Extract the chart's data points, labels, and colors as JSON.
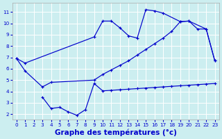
{
  "background_color": "#cceef0",
  "grid_color": "#ffffff",
  "line_color": "#0000cc",
  "xlabel": "Graphe des températures (°c)",
  "xlabel_fontsize": 7.5,
  "xlim": [
    -0.5,
    23.5
  ],
  "ylim": [
    1.5,
    11.8
  ],
  "xticks": [
    0,
    1,
    2,
    3,
    4,
    5,
    6,
    7,
    8,
    9,
    10,
    11,
    12,
    13,
    14,
    15,
    16,
    17,
    18,
    19,
    20,
    21,
    22,
    23
  ],
  "yticks": [
    2,
    3,
    4,
    5,
    6,
    7,
    8,
    9,
    10,
    11
  ],
  "series1_x": [
    0,
    1,
    9,
    10,
    11,
    12,
    13,
    14,
    15,
    16,
    17,
    19,
    20,
    22,
    23
  ],
  "series1_y": [
    6.9,
    6.5,
    8.8,
    10.2,
    10.2,
    9.6,
    8.9,
    8.7,
    11.2,
    11.1,
    10.9,
    10.15,
    10.2,
    9.5,
    6.7
  ],
  "series2_x": [
    0,
    1,
    3,
    4,
    9,
    10,
    11,
    12,
    13,
    14,
    15,
    16,
    17,
    18,
    19,
    20,
    21,
    22,
    23
  ],
  "series2_y": [
    6.9,
    5.8,
    4.4,
    4.8,
    5.0,
    5.5,
    5.9,
    6.3,
    6.7,
    7.2,
    7.7,
    8.2,
    8.7,
    9.3,
    10.15,
    10.2,
    9.5,
    9.5,
    6.7
  ],
  "series3_x": [
    3,
    4,
    5,
    6,
    7,
    8,
    9,
    10,
    11,
    12,
    13,
    14,
    15,
    16,
    17,
    18,
    19,
    20,
    21,
    22,
    23
  ],
  "series3_y": [
    3.5,
    2.5,
    2.6,
    2.2,
    1.9,
    2.4,
    4.7,
    4.05,
    4.1,
    4.15,
    4.2,
    4.25,
    4.3,
    4.35,
    4.4,
    4.45,
    4.5,
    4.55,
    4.6,
    4.65,
    4.7
  ]
}
